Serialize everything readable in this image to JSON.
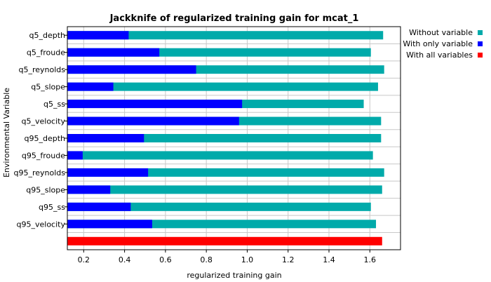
{
  "chart_data": {
    "type": "bar",
    "orientation": "horizontal",
    "title": "Jackknife of regularized training gain for mcat_1",
    "xlabel": "regularized training gain",
    "ylabel": "Environmental Variable",
    "xlim": [
      0.12,
      1.75
    ],
    "xticks": [
      "0.2",
      "0.4",
      "0.6",
      "0.8",
      "1.0",
      "1.2",
      "1.4",
      "1.6"
    ],
    "grid": true,
    "legend_position": "right",
    "categories": [
      "q5_depth",
      "q5_froude",
      "q5_reynolds",
      "q5_slope",
      "q5_ss",
      "q5_velocity",
      "q95_depth",
      "q95_froude",
      "q95_reynolds",
      "q95_slope",
      "q95_ss",
      "q95_velocity"
    ],
    "series": [
      {
        "name": "Without variable",
        "color": "#00aaaa",
        "values": [
          1.665,
          1.605,
          1.67,
          1.64,
          1.57,
          1.655,
          1.655,
          1.615,
          1.67,
          1.66,
          1.605,
          1.63
        ]
      },
      {
        "name": "With only variable",
        "color": "#0000ff",
        "values": [
          0.42,
          0.57,
          0.75,
          0.345,
          0.975,
          0.96,
          0.495,
          0.195,
          0.515,
          0.33,
          0.43,
          0.535
        ]
      },
      {
        "name": "With all variables",
        "color": "#ff0000",
        "value": 1.66
      }
    ]
  }
}
